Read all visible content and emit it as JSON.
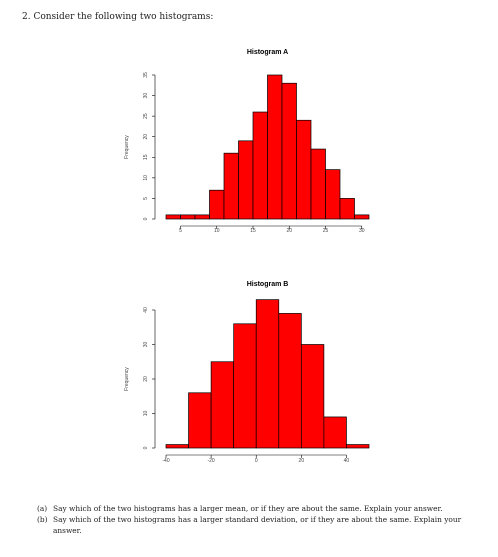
{
  "question": {
    "intro": "2. Consider the following two histograms:"
  },
  "chart_data": [
    {
      "type": "bar",
      "title": "Histogram A",
      "ylabel": "Frequency",
      "xlabel": "",
      "bin_edges": [
        3,
        5,
        7,
        9,
        11,
        13,
        15,
        17,
        19,
        21,
        23,
        25,
        27,
        29,
        31
      ],
      "values": [
        1,
        1,
        1,
        7,
        16,
        19,
        26,
        35,
        33,
        24,
        17,
        12,
        5,
        1
      ],
      "xticks": [
        5,
        10,
        15,
        20,
        25,
        30
      ],
      "yticks": [
        0,
        5,
        10,
        15,
        20,
        25,
        30,
        35
      ],
      "xlim": [
        3,
        31
      ],
      "ylim": [
        0,
        35
      ]
    },
    {
      "type": "bar",
      "title": "Histogram B",
      "ylabel": "Frequency",
      "xlabel": "",
      "bin_edges": [
        -40,
        -30,
        -20,
        -10,
        0,
        10,
        20,
        30,
        40,
        50
      ],
      "values": [
        1,
        16,
        25,
        36,
        43,
        39,
        30,
        9,
        1
      ],
      "xticks": [
        -40,
        -20,
        0,
        20,
        40
      ],
      "yticks": [
        0,
        10,
        20,
        30,
        40
      ],
      "xlim": [
        -40,
        50
      ],
      "ylim": [
        0,
        40
      ]
    }
  ],
  "parts": [
    {
      "label": "(a)",
      "text": "Say which of the two histograms has a larger mean, or if they are about the same. Explain your answer."
    },
    {
      "label": "(b)",
      "text": "Say which of the two histograms has a larger standard deviation, or if they are about the same. Explain your answer."
    }
  ]
}
